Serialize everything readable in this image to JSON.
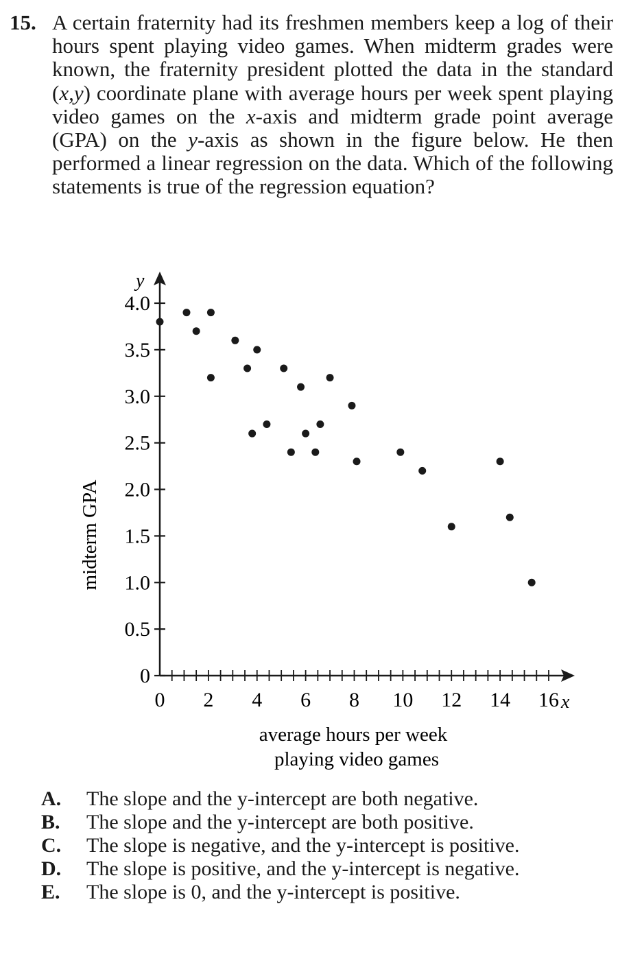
{
  "question": {
    "number": "15.",
    "stem_parts": [
      "A certain fraternity had its freshmen members keep a log of their hours spent playing video games. When midterm grades were known, the fraternity president plotted the data in the standard (",
      "x,y",
      ") coordinate plane with average hours per week spent playing video games on the ",
      "x",
      "-axis and midterm grade point average (GPA) on the ",
      "y",
      "-axis as shown in the figure below. He then performed a linear regression on the data. Which of the following statements is true of the regression equation?"
    ]
  },
  "chart_data": {
    "type": "scatter",
    "xlabel": [
      "average hours per week",
      "playing video games"
    ],
    "ylabel": "midterm GPA",
    "x_axis_letter": "x",
    "y_axis_letter": "y",
    "xlim": [
      0,
      16
    ],
    "ylim": [
      0,
      4.0
    ],
    "x_ticks": [
      "0",
      "2",
      "4",
      "6",
      "8",
      "10",
      "12",
      "14",
      "16"
    ],
    "x_tick_values": [
      0,
      2,
      4,
      6,
      8,
      10,
      12,
      14,
      16
    ],
    "x_minor_step": 0.5,
    "y_ticks": [
      "0",
      "0.5",
      "1.0",
      "1.5",
      "2.0",
      "2.5",
      "3.0",
      "3.5",
      "4.0"
    ],
    "y_tick_values": [
      0,
      0.5,
      1.0,
      1.5,
      2.0,
      2.5,
      3.0,
      3.5,
      4.0
    ],
    "grid": false,
    "points": [
      {
        "x": 0,
        "y": 3.8
      },
      {
        "x": 1.1,
        "y": 3.9
      },
      {
        "x": 1.5,
        "y": 3.7
      },
      {
        "x": 2.1,
        "y": 3.9
      },
      {
        "x": 2.1,
        "y": 3.2
      },
      {
        "x": 3.1,
        "y": 3.6
      },
      {
        "x": 3.6,
        "y": 3.3
      },
      {
        "x": 3.8,
        "y": 2.6
      },
      {
        "x": 4.0,
        "y": 3.5
      },
      {
        "x": 4.4,
        "y": 2.7
      },
      {
        "x": 5.1,
        "y": 3.3
      },
      {
        "x": 5.4,
        "y": 2.4
      },
      {
        "x": 5.8,
        "y": 3.1
      },
      {
        "x": 6.0,
        "y": 2.6
      },
      {
        "x": 6.4,
        "y": 2.4
      },
      {
        "x": 6.6,
        "y": 2.7
      },
      {
        "x": 7.0,
        "y": 3.2
      },
      {
        "x": 7.9,
        "y": 2.9
      },
      {
        "x": 8.1,
        "y": 2.3
      },
      {
        "x": 9.9,
        "y": 2.4
      },
      {
        "x": 10.8,
        "y": 2.2
      },
      {
        "x": 12.0,
        "y": 1.6
      },
      {
        "x": 14.0,
        "y": 2.3
      },
      {
        "x": 14.4,
        "y": 1.7
      },
      {
        "x": 15.3,
        "y": 1.0
      }
    ]
  },
  "answers": [
    {
      "letter": "A.",
      "text": "The slope and the y-intercept are both negative."
    },
    {
      "letter": "B.",
      "text": "The slope and the y-intercept are both positive."
    },
    {
      "letter": "C.",
      "text": "The slope is negative, and the y-intercept is positive."
    },
    {
      "letter": "D.",
      "text": "The slope is positive, and the y-intercept is negative."
    },
    {
      "letter": "E.",
      "text": "The slope is 0, and the y-intercept is positive."
    }
  ]
}
